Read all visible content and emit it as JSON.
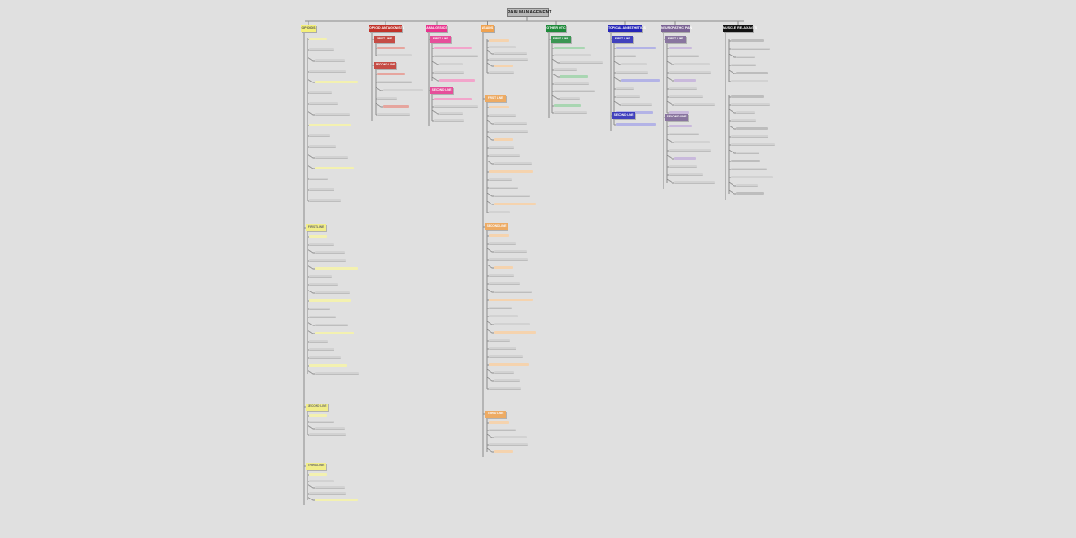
{
  "title": "PAIN MANAGEMENT",
  "colors": {
    "background": "#e0e0e0",
    "connector": "#8a8a8a",
    "root": "#b9b9b9"
  },
  "categories": [
    {
      "id": "opioids",
      "label": "OPIOIDS",
      "color": "#f4f07a",
      "text": "#555",
      "light": "#f3f1b0",
      "groups": [
        {
          "label": "",
          "leaves": 16
        },
        {
          "label": "FIRST LINE",
          "leaves": 18
        },
        {
          "label": "SECOND LINE",
          "leaves": 4
        },
        {
          "label": "THIRD LINE",
          "leaves": 5
        }
      ]
    },
    {
      "id": "opioid-antagonists",
      "label": "OPIOID ANTAGONISTS",
      "color": "#c1332a",
      "text": "#fff",
      "light": "#e6a59e",
      "groups": [
        {
          "label": "FIRST LINE",
          "leaves": 2
        },
        {
          "label": "SECOND LINE",
          "leaves": 6
        }
      ]
    },
    {
      "id": "analgesics",
      "label": "ANALGESICS",
      "color": "#e8358e",
      "text": "#fff",
      "light": "#f2a5cb",
      "groups": [
        {
          "label": "FIRST LINE",
          "leaves": 5
        },
        {
          "label": "SECOND LINE",
          "leaves": 4
        }
      ]
    },
    {
      "id": "nsaids",
      "label": "NSAIDS",
      "color": "#f0a24f",
      "text": "#fff",
      "light": "#f5d3ae",
      "groups": [
        {
          "label": "",
          "leaves": 6
        },
        {
          "label": "FIRST LINE",
          "leaves": 14
        },
        {
          "label": "SECOND LINE",
          "leaves": 20
        },
        {
          "label": "THIRD LINE",
          "leaves": 5
        }
      ]
    },
    {
      "id": "other-otc",
      "label": "OTHER OTC",
      "color": "#1f8a3b",
      "text": "#fff",
      "light": "#a9d6b2",
      "groups": [
        {
          "label": "FIRST LINE",
          "leaves": 10
        }
      ]
    },
    {
      "id": "topical-anesthetics",
      "label": "TOPICAL ANESTHETICS",
      "color": "#2626b8",
      "text": "#fff",
      "light": "#b3b3e6",
      "groups": [
        {
          "label": "FIRST LINE",
          "leaves": 9
        },
        {
          "label": "SECOND LINE",
          "leaves": 1
        }
      ]
    },
    {
      "id": "neuropathic-pain",
      "label": "NEUROPATHIC PAIN",
      "color": "#7b6394",
      "text": "#fff",
      "light": "#c9b9dc",
      "groups": [
        {
          "label": "FIRST LINE",
          "leaves": 9
        },
        {
          "label": "SECOND LINE",
          "leaves": 8
        }
      ]
    },
    {
      "id": "muscle-relaxants",
      "label": "MUSCLE RELAXANTS",
      "color": "#111111",
      "text": "#fff",
      "light": "#bdbdbd",
      "groups": [
        {
          "label": "",
          "leaves": 6
        },
        {
          "label": "",
          "leaves": 13
        }
      ]
    }
  ]
}
